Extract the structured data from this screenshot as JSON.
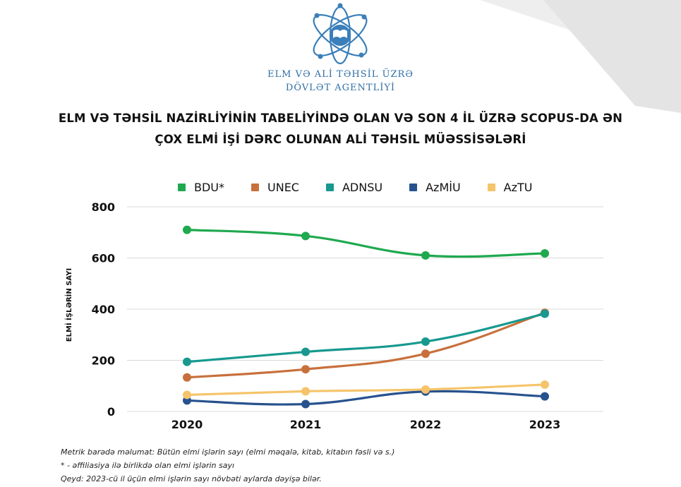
{
  "org": {
    "line1": "ELM VƏ ALİ TƏHSİL ÜZRƏ",
    "line2": "DÖVLƏT AGENTLİYİ"
  },
  "title": {
    "line1": "ELM VƏ TƏHSİL NAZİRLİYİNİN TABELİYİNDƏ OLAN VƏ SON 4 İL ÜZRƏ SCOPUS-DA ƏN",
    "line2": "ÇOX ELMİ İŞİ DƏRC OLUNAN ALİ TƏHSİL MÜƏSSİSƏLƏRİ"
  },
  "chart_data": {
    "type": "line",
    "title": "",
    "xlabel": "",
    "ylabel": "ELMİ İŞLƏRİN SAYI",
    "x": [
      "2020",
      "2021",
      "2022",
      "2023"
    ],
    "ylim": [
      0,
      800
    ],
    "yticks": [
      0,
      200,
      400,
      600,
      800
    ],
    "grid": true,
    "legend": "top",
    "series": [
      {
        "name": "BDU*",
        "color": "#1fa94f",
        "values": [
          710,
          686,
          610,
          618
        ]
      },
      {
        "name": "UNEC",
        "color": "#c8703c",
        "values": [
          133,
          165,
          226,
          386
        ]
      },
      {
        "name": "ADNSU",
        "color": "#17998f",
        "values": [
          194,
          233,
          273,
          382
        ]
      },
      {
        "name": "AzMİU",
        "color": "#27528e",
        "values": [
          43,
          29,
          78,
          59
        ]
      },
      {
        "name": "AzTU",
        "color": "#f5c46a",
        "values": [
          65,
          79,
          86,
          105
        ]
      }
    ]
  },
  "footnotes": {
    "line1": "Metrik barədə məlumat: Bütün elmi işlərin sayı (elmi məqalə, kitab, kitabın fəsli və s.)",
    "line2": "* - əffiliasiya ilə birlikdə olan elmi işlərin sayı",
    "line3": "Qeyd: 2023-cü il üçün elmi işlərin sayı növbəti aylarda dəyişə bilər."
  }
}
